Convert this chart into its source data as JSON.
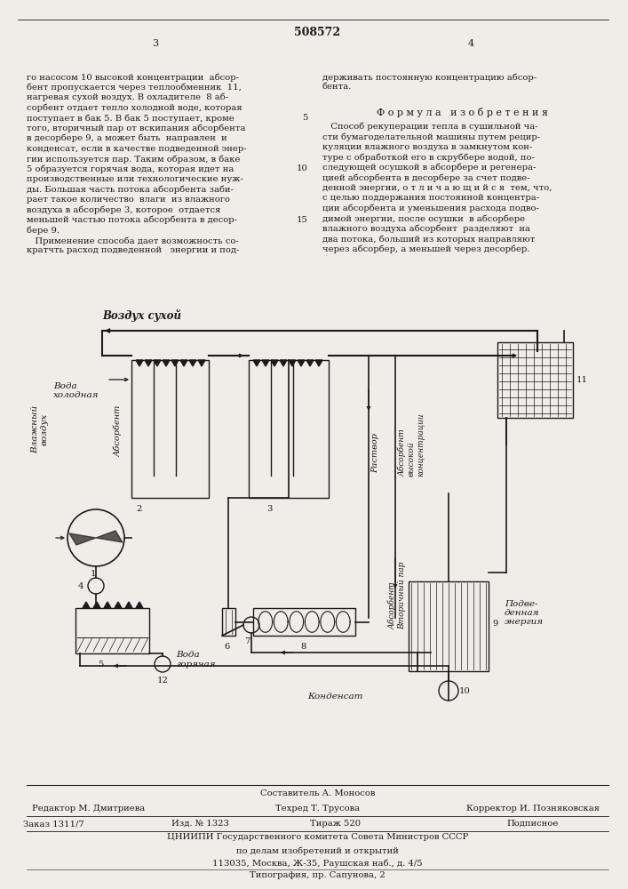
{
  "page_width": 7.07,
  "page_height": 10.0,
  "bg_color": "#f0ede8",
  "patent_number": "508572",
  "page_left": "3",
  "page_right": "4",
  "left_col_lines": [
    "го насосом 10 высокой концентрации  абсор-",
    "бент пропускается через теплообменник  11,",
    "нагревая сухой воздух. В охладителе  8 аб-",
    "сорбент отдает тепло холодной воде, которая",
    "поступает в бак 5. В бак 5 поступает, кроме",
    "того, вторичный пар от вскипания абсорбента",
    "в десорбере 9, а может быть  направлен  и",
    "конденсат, если в качестве подведенной энер-",
    "гии используется пар. Таким образом, в баке",
    "5 образуется горячая вода, которая идет на",
    "производственные или технологические нуж-",
    "ды. Большая часть потока абсорбента заби-",
    "рает такое количество  влаги  из влажного",
    "воздуха в абсорбере 3, которое  отдается",
    "меньшей частью потока абсорбента в десор-",
    "бере 9.",
    "   Применение способа дает возможность со-",
    "кратчть расход подведенной   энергии и под-"
  ],
  "right_col_lines_1": [
    "держивать постоянную концентрацию абсор-",
    "бента."
  ],
  "formula_header": "Ф о р м у л а   и з о б р е т е н и я",
  "right_col_lines_2": [
    "   Способ рекуперации тепла в сушильной ча-",
    "сти бумагоделательной машины путем рецир-",
    "куляции влажного воздуха в замкнутом кон-",
    "туре с обработкой его в скруббере водой, по-",
    "следующей осушкой в абсорбере и регенера-",
    "цией абсорбента в десорбере за счет подве-",
    "денной энергии, о т л и ч а ю щ и й с я  тем, что,",
    "с целью поддержания постоянной концентра-",
    "ции абсорбента и уменьшения расхода подво-",
    "димой энергии, после осушки  в абсорбере",
    "влажного воздуха абсорбент  разделяют  на",
    "два потока, больший из которых направляют",
    "через абсорбер, а меньшей через десорбер."
  ],
  "line_num_5_row": 4,
  "line_num_10_row": 9,
  "line_num_15_row": 14,
  "footer_sostavitel": "Составитель А. Моносов",
  "footer_editor": "Редактор М. Дмитриева",
  "footer_tekhred": "Техред Т. Трусова",
  "footer_korrektor": "Корректор И. Позняковская",
  "footer_zakaz": "Заказ 1311/7",
  "footer_izd": "Изд. № 1323",
  "footer_tirazh": "Тираж 520",
  "footer_podpisnoe": "Подписное",
  "footer_tsniip": "ЦНИИПИ Государственного комитета Совета Министров СССР",
  "footer_po_delam": "по делам изобретений и открытий",
  "footer_addr": "113035, Москва, Ж-35, Раушская наб., д. 4/5",
  "footer_tipograf": "Типография, пр. Сапунова, 2",
  "text_color": "#1a1a1a",
  "line_color": "#1a1a1a"
}
